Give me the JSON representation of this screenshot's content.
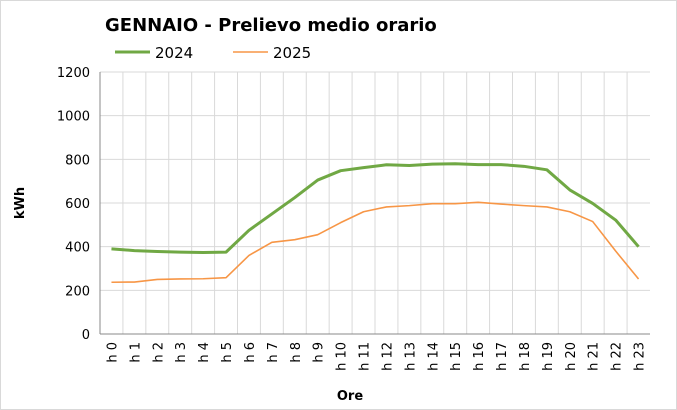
{
  "chart_data": {
    "type": "line",
    "title": "GENNAIO - Prelievo medio orario",
    "x_label": "Ore",
    "y_label": "kWh",
    "categories": [
      "h 0",
      "h 1",
      "h 2",
      "h 3",
      "h 4",
      "h 5",
      "h 6",
      "h 7",
      "h 8",
      "h 9",
      "h 10",
      "h 11",
      "h 12",
      "h 13",
      "h 14",
      "h 15",
      "h 16",
      "h 17",
      "h 18",
      "h 19",
      "h 20",
      "h 21",
      "h 22",
      "h 23"
    ],
    "series": [
      {
        "name": "2024",
        "color": "#70a844",
        "values": [
          390,
          382,
          378,
          375,
          373,
          375,
          475,
          550,
          625,
          705,
          748,
          762,
          775,
          772,
          778,
          780,
          776,
          776,
          768,
          752,
          660,
          598,
          522,
          400
        ]
      },
      {
        "name": "2025",
        "color": "#f79646",
        "values": [
          237,
          238,
          250,
          252,
          253,
          258,
          360,
          420,
          432,
          455,
          510,
          560,
          582,
          588,
          597,
          597,
          603,
          595,
          588,
          582,
          560,
          515,
          380,
          252
        ]
      }
    ],
    "ylim": [
      0,
      1200
    ],
    "yticks": [
      0,
      200,
      400,
      600,
      800,
      1000,
      1200
    ],
    "grid": true
  }
}
